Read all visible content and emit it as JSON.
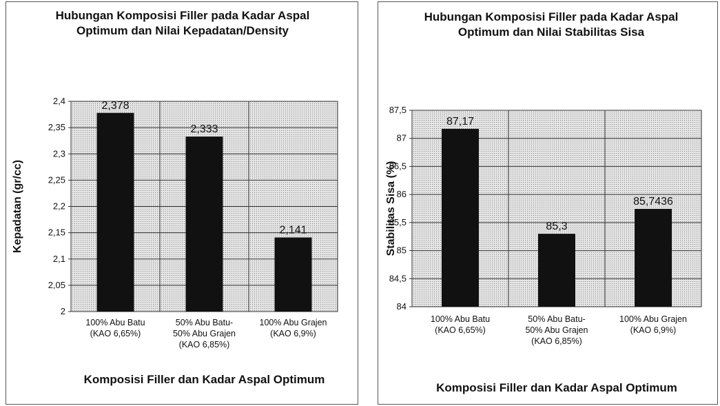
{
  "chart_data": [
    {
      "type": "bar",
      "title": "Hubungan Komposisi Filler pada Kadar Aspal Optimum dan Nilai Kepadatan/Density",
      "ylabel": "Kepadatan (gr/cc)",
      "xlabel": "Komposisi Filler dan Kadar Aspal Optimum",
      "categories": [
        "100% Abu Batu (KAO 6,65%)",
        "50% Abu Batu-50% Abu Grajen (KAO 6,85%)",
        "100% Abu Grajen (KAO 6,9%)"
      ],
      "values": [
        2.378,
        2.333,
        2.141
      ],
      "value_labels": [
        "2,378",
        "2,333",
        "2,141"
      ],
      "color": "#111111",
      "ylim": [
        2,
        2.4
      ],
      "yticks": [
        2,
        {
          "value": 2.05,
          "label": "2,05"
        },
        {
          "value": 2.1,
          "label": "2,1"
        },
        {
          "value": 2.15,
          "label": "2,15"
        },
        {
          "value": 2.2,
          "label": "2,2"
        },
        {
          "value": 2.25,
          "label": "2,25"
        },
        {
          "value": 2.3,
          "label": "2,3"
        },
        {
          "value": 2.35,
          "label": "2,35"
        },
        {
          "value": 2.4,
          "label": "2,4"
        }
      ],
      "grid": true
    },
    {
      "type": "bar",
      "title": "Hubungan Komposisi Filler pada Kadar Aspal Optimum dan Nilai Stabilitas Sisa",
      "ylabel": "Stabilitas Sisa (%)",
      "xlabel": "Komposisi Filler dan Kadar Aspal Optimum",
      "categories": [
        "100% Abu Batu (KAO 6,65%)",
        "50% Abu Batu-50% Abu Grajen (KAO 6,85%)",
        "100% Abu Grajen (KAO 6,9%)"
      ],
      "values": [
        87.17,
        85.3,
        85.7436
      ],
      "value_labels": [
        "87,17",
        "85,3",
        "85,7436"
      ],
      "color": "#111111",
      "ylim": [
        84,
        87.5
      ],
      "yticks": [
        84,
        {
          "value": 84.5,
          "label": "84,5"
        },
        85,
        {
          "value": 85.5,
          "label": "85,5"
        },
        86,
        {
          "value": 86.5,
          "label": "86,5"
        },
        87,
        {
          "value": 87.5,
          "label": "87,5"
        }
      ],
      "grid": true
    }
  ]
}
